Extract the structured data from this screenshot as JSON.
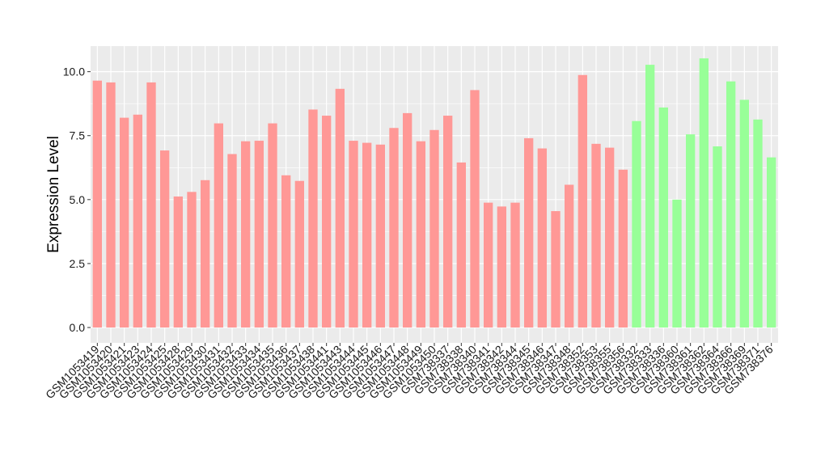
{
  "chart_data": {
    "type": "bar",
    "title": "",
    "xlabel": "",
    "ylabel": "Expression Level",
    "ylim": [
      -0.6,
      11.0
    ],
    "yticks": [
      0.0,
      2.5,
      5.0,
      7.5,
      10.0
    ],
    "ytick_labels": [
      "0.0",
      "2.5",
      "5.0",
      "7.5",
      "10.0"
    ],
    "grid": true,
    "legend": "none",
    "background_color": "#ebebeb",
    "gridline_color": "#ffffff",
    "categories": [
      "GSM1053419",
      "GSM1053420",
      "GSM1053421",
      "GSM1053423",
      "GSM1053424",
      "GSM1053425",
      "GSM1053428",
      "GSM1053429",
      "GSM1053430",
      "GSM1053431",
      "GSM1053432",
      "GSM1053433",
      "GSM1053434",
      "GSM1053435",
      "GSM1053436",
      "GSM1053437",
      "GSM1053438",
      "GSM1053441",
      "GSM1053443",
      "GSM1053444",
      "GSM1053445",
      "GSM1053446",
      "GSM1053447",
      "GSM1053448",
      "GSM1053449",
      "GSM1053450",
      "GSM738337",
      "GSM738338",
      "GSM738340",
      "GSM738341",
      "GSM738342",
      "GSM738344",
      "GSM738345",
      "GSM738346",
      "GSM738347",
      "GSM738348",
      "GSM738352",
      "GSM738353",
      "GSM738355",
      "GSM738356",
      "GSM738332",
      "GSM738333",
      "GSM738336",
      "GSM738360",
      "GSM738361",
      "GSM738362",
      "GSM738364",
      "GSM738366",
      "GSM738369",
      "GSM738371",
      "GSM738376"
    ],
    "values": [
      9.65,
      9.58,
      8.2,
      8.32,
      9.58,
      6.92,
      5.12,
      5.3,
      5.76,
      7.98,
      6.78,
      7.28,
      7.3,
      7.98,
      5.95,
      5.73,
      8.52,
      8.28,
      9.33,
      7.3,
      7.22,
      7.15,
      7.8,
      8.38,
      7.28,
      7.72,
      8.28,
      6.45,
      9.28,
      4.88,
      4.73,
      4.88,
      7.4,
      7.0,
      4.55,
      5.58,
      9.87,
      7.18,
      7.03,
      6.17,
      8.07,
      10.27,
      8.6,
      5.0,
      7.55,
      10.52,
      7.08,
      9.62,
      8.9,
      8.13,
      6.65
    ],
    "bar_groups": [
      {
        "color": "#ff9896",
        "start": 0,
        "end": 39
      },
      {
        "color": "#98ff98",
        "start": 40,
        "end": 50
      }
    ]
  }
}
